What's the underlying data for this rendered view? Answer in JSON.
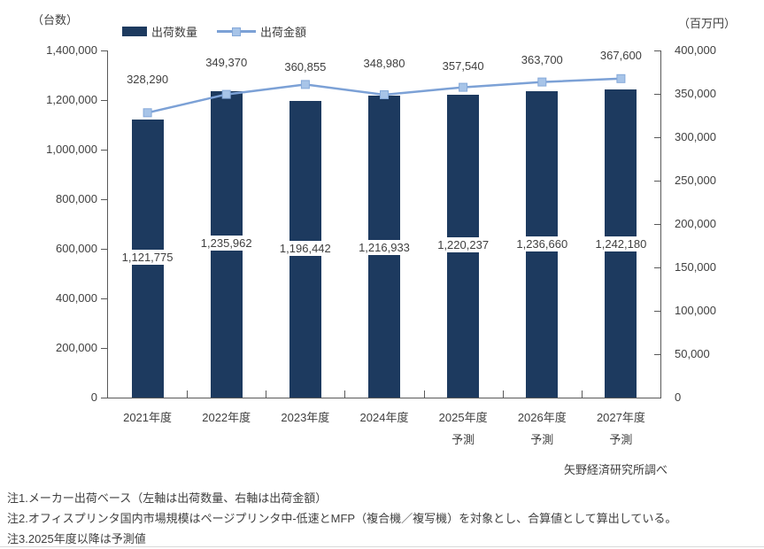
{
  "units": {
    "left": "（台数）",
    "right": "（百万円）"
  },
  "legend": [
    {
      "label": "出荷数量",
      "marker": "bar"
    },
    {
      "label": "出荷金額",
      "marker": "line-square"
    }
  ],
  "source": "矢野経済研究所調べ",
  "notes": [
    "注1.メーカー出荷ベース（左軸は出荷数量、右軸は出荷金額）",
    "注2.オフィスプリンタ国内市場規模はページプリンタ中-低速とMFP（複合機／複写機）を対象とし、合算値として算出している。",
    "注3.2025年度以降は予測値"
  ],
  "colors": {
    "bar": "#1d3a5f",
    "line": "#7ca1d6",
    "marker_fill": "#a7c4e8",
    "marker_stroke": "#85a9d9",
    "axis": "#595959",
    "text": "#3f3f3f"
  },
  "chart_data": {
    "type": "bar",
    "subtype": "combo-bar-line-dual-axis",
    "grid": false,
    "legend_position": "top",
    "categories": [
      {
        "label": "2021年度",
        "sub": ""
      },
      {
        "label": "2022年度",
        "sub": ""
      },
      {
        "label": "2023年度",
        "sub": ""
      },
      {
        "label": "2024年度",
        "sub": ""
      },
      {
        "label": "2025年度",
        "sub": "予測"
      },
      {
        "label": "2026年度",
        "sub": "予測"
      },
      {
        "label": "2027年度",
        "sub": "予測"
      }
    ],
    "series": [
      {
        "name": "出荷数量",
        "type": "bar",
        "axis": "left",
        "values": [
          1121775,
          1235962,
          1196442,
          1216933,
          1220237,
          1236660,
          1242180
        ],
        "labels": [
          "1,121,775",
          "1,235,962",
          "1,196,442",
          "1,216,933",
          "1,220,237",
          "1,236,660",
          "1,242,180"
        ]
      },
      {
        "name": "出荷金額",
        "type": "line",
        "axis": "right",
        "values": [
          328290,
          349370,
          360855,
          348980,
          357540,
          363700,
          367600
        ],
        "labels": [
          "328,290",
          "349,370",
          "360,855",
          "348,980",
          "357,540",
          "363,700",
          "367,600"
        ]
      }
    ],
    "left_axis": {
      "title": "（台数）",
      "min": 0,
      "max": 1400000,
      "step": 200000,
      "ticks": [
        "0",
        "200,000",
        "400,000",
        "600,000",
        "800,000",
        "1,000,000",
        "1,200,000",
        "1,400,000"
      ]
    },
    "right_axis": {
      "title": "（百万円）",
      "min": 0,
      "max": 400000,
      "step": 50000,
      "ticks": [
        "0",
        "50,000",
        "100,000",
        "150,000",
        "200,000",
        "250,000",
        "300,000",
        "350,000",
        "400,000"
      ]
    }
  }
}
